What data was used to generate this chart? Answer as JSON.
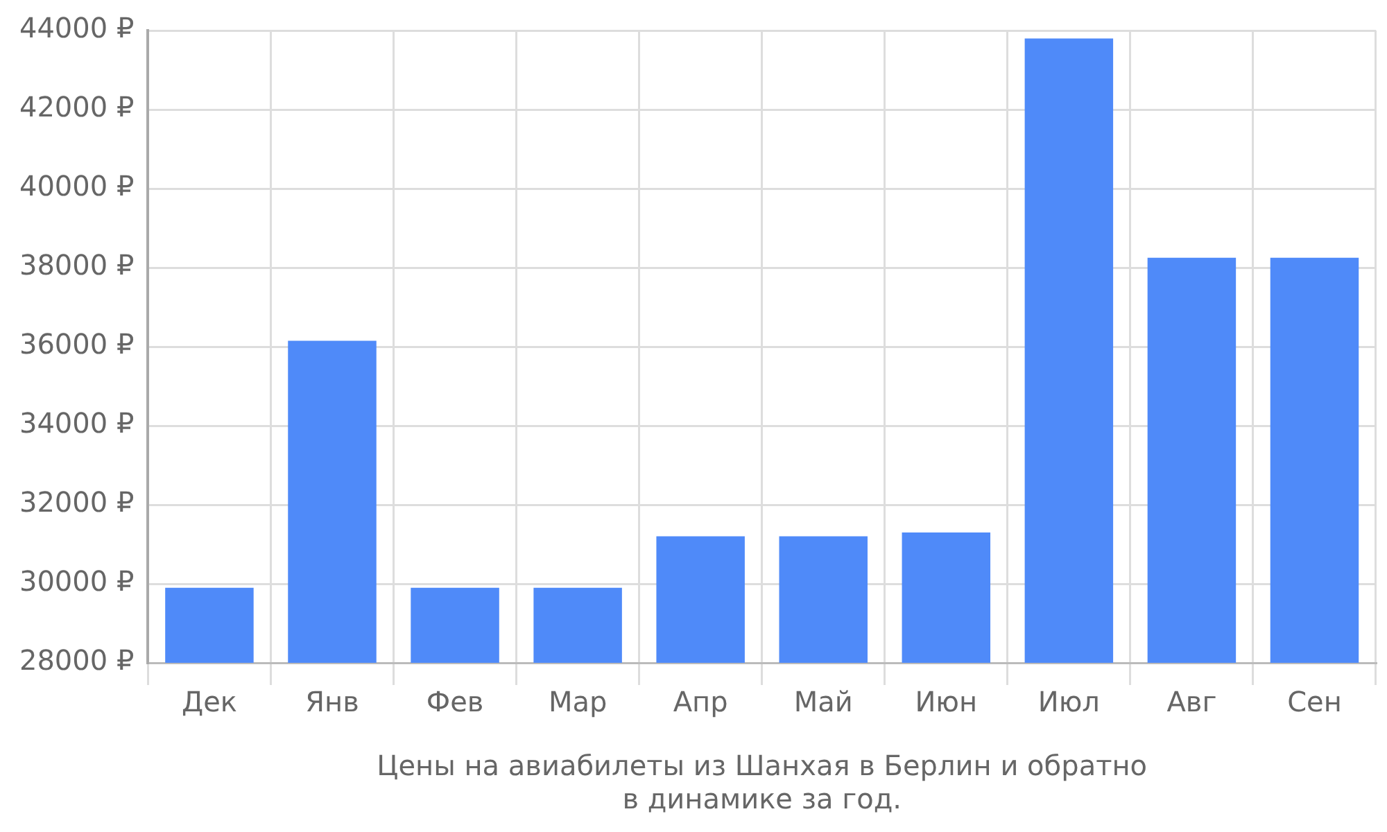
{
  "chart_data": {
    "type": "bar",
    "xlabel": "Цены на авиабилеты из Шанхая в Берлин и обратно\nв динамике за год.",
    "categories": [
      "Дек",
      "Янв",
      "Фев",
      "Мар",
      "Апр",
      "Май",
      "Июн",
      "Июл",
      "Авг",
      "Сен"
    ],
    "values": [
      29900,
      36150,
      29900,
      29900,
      31200,
      31200,
      31300,
      43800,
      38250,
      38250
    ],
    "color": "#4f8af9",
    "ylim": [
      28000,
      44000
    ],
    "yticks": [
      {
        "value": 28000,
        "label": "28000 ₽"
      },
      {
        "value": 30000,
        "label": "30000 ₽"
      },
      {
        "value": 32000,
        "label": "32000 ₽"
      },
      {
        "value": 34000,
        "label": "34000 ₽"
      },
      {
        "value": 36000,
        "label": "36000 ₽"
      },
      {
        "value": 38000,
        "label": "38000 ₽"
      },
      {
        "value": 40000,
        "label": "40000 ₽"
      },
      {
        "value": 42000,
        "label": "42000 ₽"
      },
      {
        "value": 44000,
        "label": "44000 ₽"
      }
    ],
    "grid": true,
    "legend": false
  }
}
